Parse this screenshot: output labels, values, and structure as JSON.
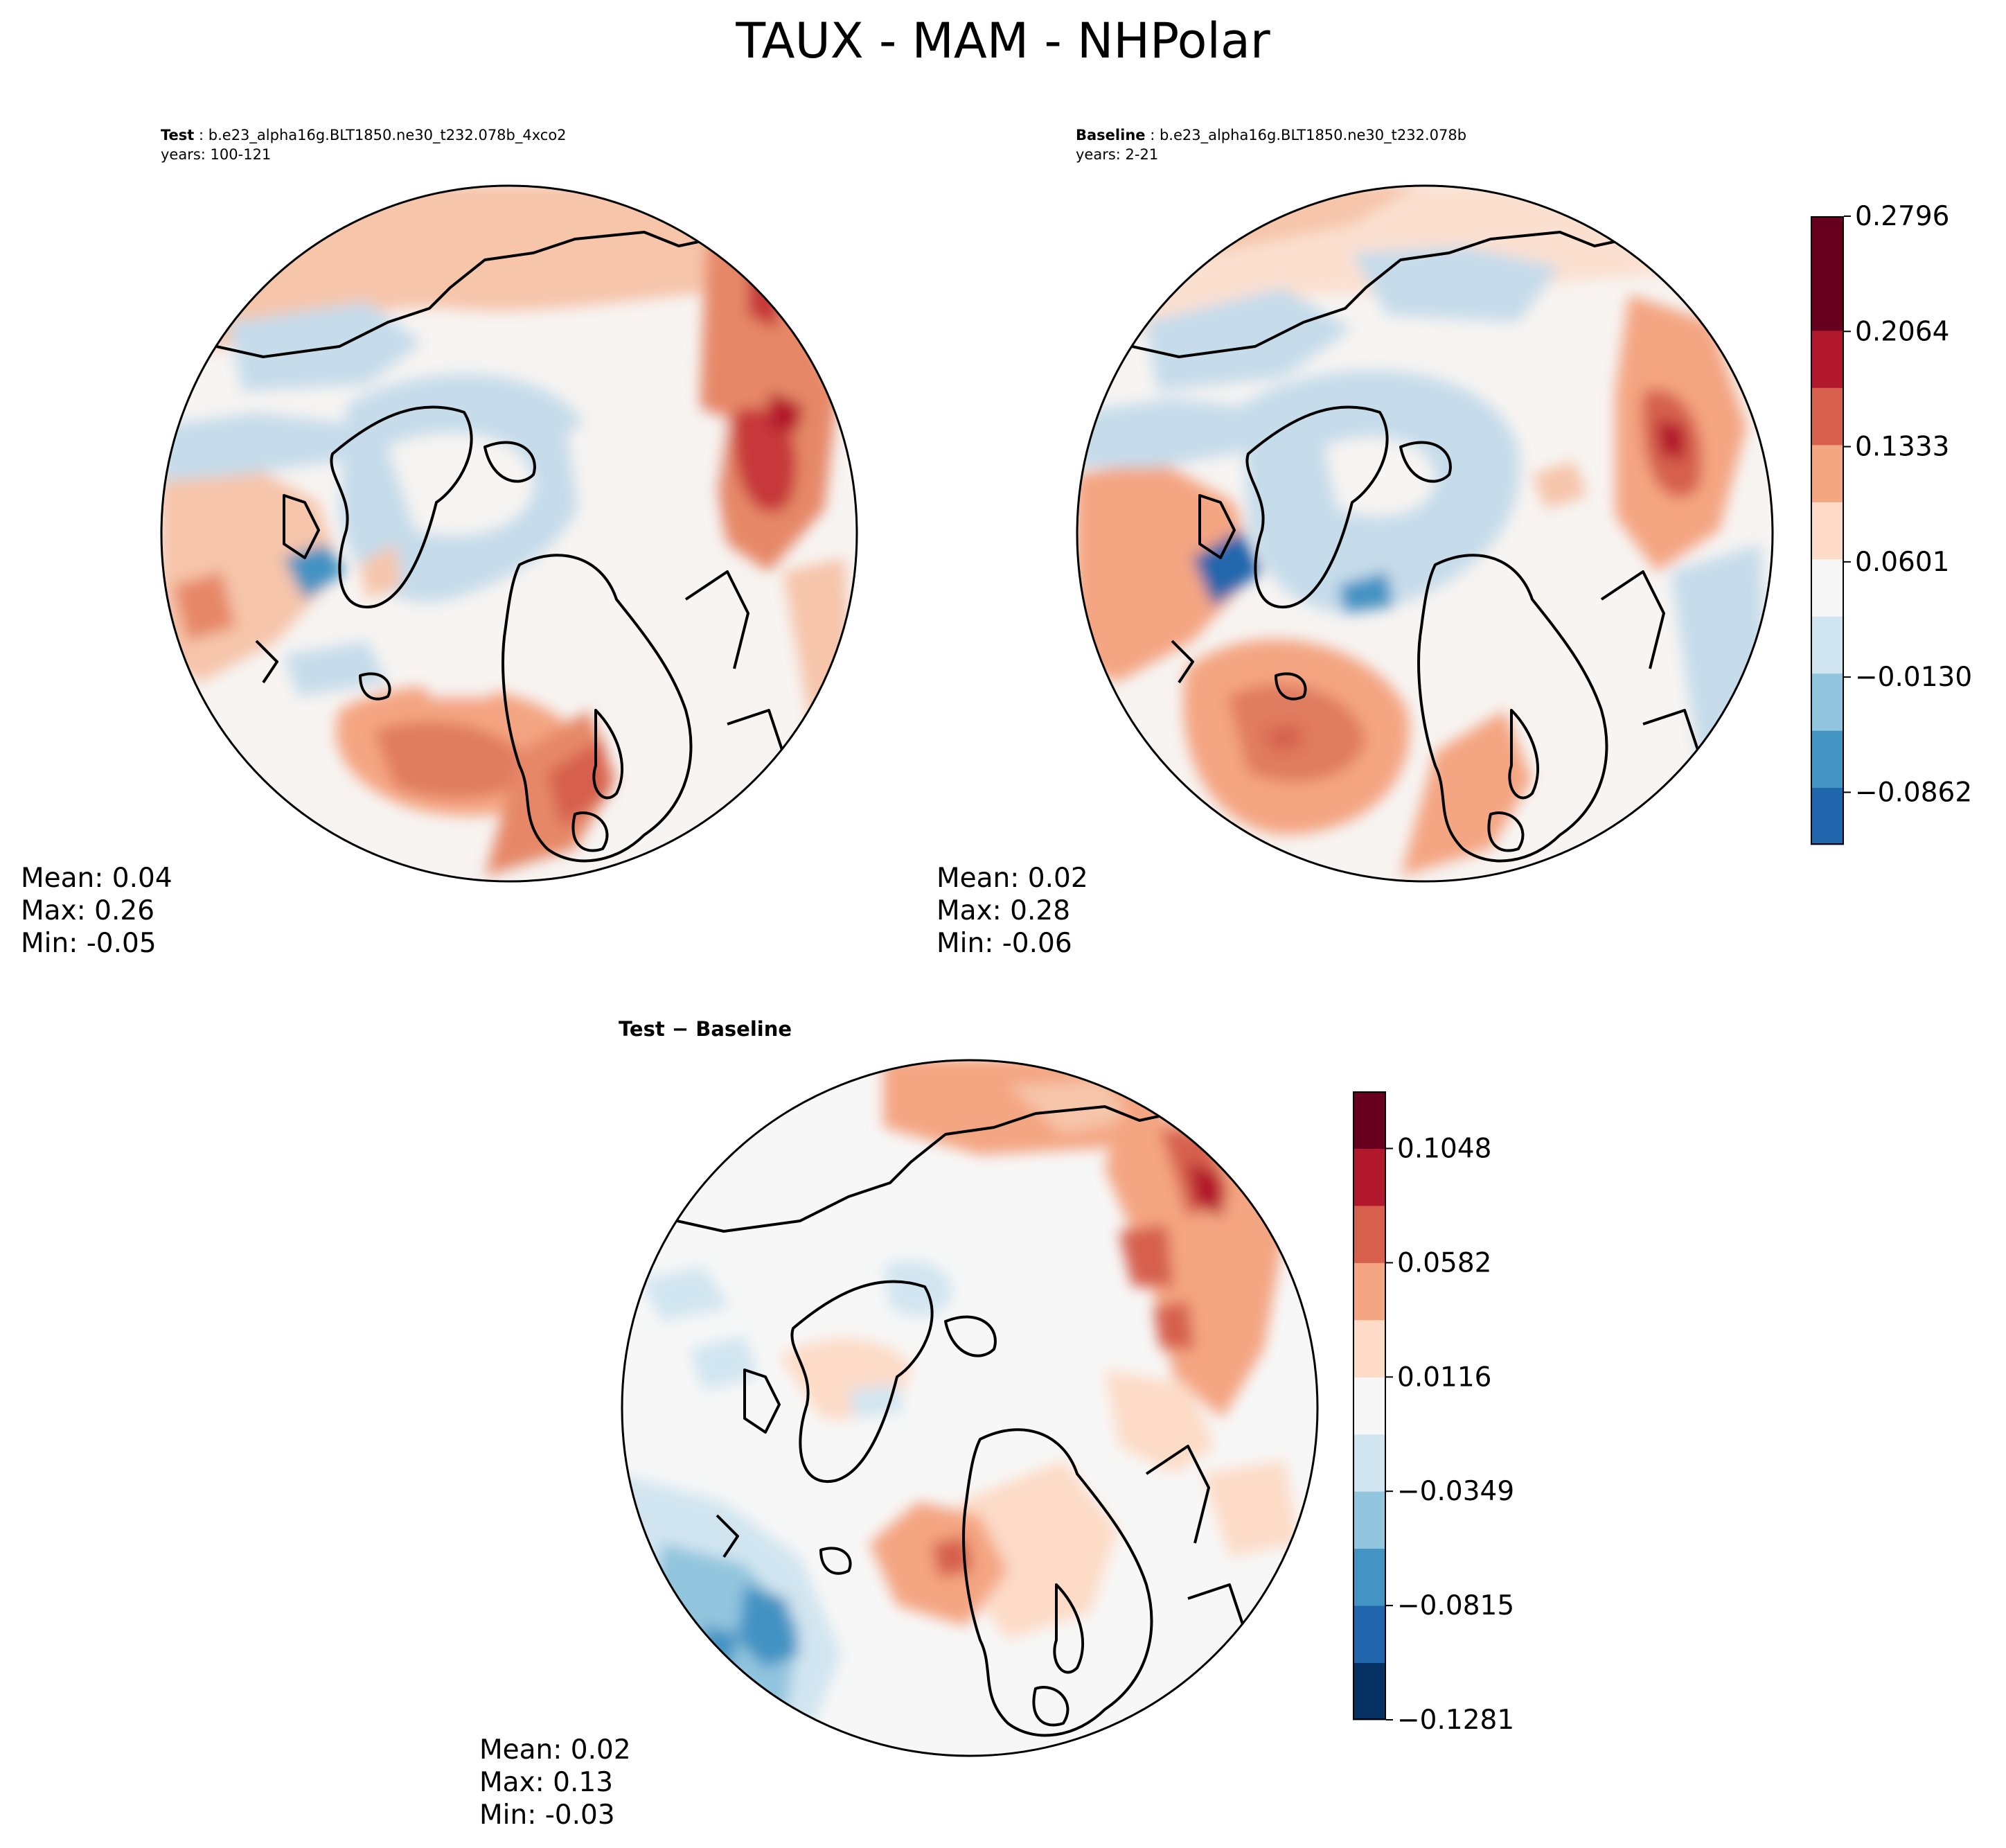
{
  "figure": {
    "title": "TAUX - MAM - NHPolar"
  },
  "panels": [
    {
      "id": "test",
      "label": "Test",
      "case": "b.e23_alpha16g.BLT1850.ne30_t232.078b_4xco2",
      "years": "years: 100-121",
      "stats": {
        "mean": "Mean:  0.04",
        "max": "Max:  0.26",
        "min": "Min: -0.05"
      }
    },
    {
      "id": "baseline",
      "label": "Baseline",
      "case": "b.e23_alpha16g.BLT1850.ne30_t232.078b",
      "years": "years: 2-21",
      "stats": {
        "mean": "Mean:  0.02",
        "max": "Max:  0.28",
        "min": "Min: -0.06"
      }
    },
    {
      "id": "diff",
      "label": "Test − Baseline",
      "stats": {
        "mean": "Mean:  0.02",
        "max": "Max:  0.13",
        "min": "Min: -0.03"
      }
    }
  ],
  "chart_data": [
    {
      "type": "heatmap",
      "name": "Test",
      "projection": "north polar stereographic",
      "variable": "TAUX",
      "season": "MAM",
      "region": "NHPolar",
      "summary": {
        "mean": 0.04,
        "max": 0.26,
        "min": -0.05
      },
      "colorbar": "shared with Baseline"
    },
    {
      "type": "heatmap",
      "name": "Baseline",
      "projection": "north polar stereographic",
      "summary": {
        "mean": 0.02,
        "max": 0.28,
        "min": -0.06
      },
      "colorbar": {
        "ticks": [
          "0.2796",
          "0.2064",
          "0.1333",
          "0.0601",
          "−0.0130",
          "−0.0862"
        ],
        "levels": 11,
        "colors": [
          "#2166ac",
          "#4393c3",
          "#92c5de",
          "#d1e5f0",
          "#f7f7f7",
          "#fddbc7",
          "#f4a582",
          "#d6604d",
          "#b2182b",
          "#67001f",
          "#67001f"
        ]
      }
    },
    {
      "type": "heatmap",
      "name": "Test − Baseline",
      "projection": "north polar stereographic",
      "summary": {
        "mean": 0.02,
        "max": 0.13,
        "min": -0.03
      },
      "colorbar": {
        "ticks": [
          "0.1048",
          "0.0582",
          "0.0116",
          "−0.0349",
          "−0.0815",
          "−0.1281"
        ],
        "levels": 11,
        "colors": [
          "#053061",
          "#2166ac",
          "#4393c3",
          "#92c5de",
          "#d1e5f0",
          "#f7f7f7",
          "#fddbc7",
          "#f4a582",
          "#d6604d",
          "#b2182b",
          "#67001f"
        ]
      }
    }
  ]
}
